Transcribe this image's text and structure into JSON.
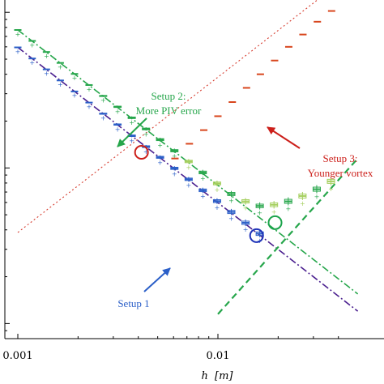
{
  "chart_data": {
    "type": "scatter",
    "title": "",
    "xlabel": "h [m]",
    "xlabel_var": "h",
    "xlabel_unit": "[m]",
    "ylabel": "",
    "xscale": "log",
    "yscale": "log",
    "xlim": [
      0.001,
      0.04
    ],
    "ylim": [
      8e-05,
      0.012
    ],
    "x_ticks": [
      {
        "value": 0.001,
        "label": "0.001"
      },
      {
        "value": 0.01,
        "label": "0.01"
      }
    ],
    "colors": {
      "setup1": "#2b5fc8",
      "setup1_fit": "#4a1f8f",
      "setup2": "#26a64b",
      "setup2_light": "#a4cf5e",
      "setup3": "#d8461d",
      "setup3_fit": "#d63b2e",
      "axis": "#000000"
    },
    "series": [
      {
        "key": "setup1",
        "x": [
          0.001,
          0.00118,
          0.00139,
          0.00163,
          0.00192,
          0.00227,
          0.00267,
          0.00315,
          0.00371,
          0.00437,
          0.00514,
          0.00606,
          0.00714,
          0.0084,
          0.0099,
          0.01166,
          0.01374,
          0.01618
        ],
        "y": [
          0.00595,
          0.00505,
          0.0043,
          0.00365,
          0.0031,
          0.00263,
          0.00223,
          0.0019,
          0.00161,
          0.00137,
          0.00117,
          0.000994,
          0.000845,
          0.000718,
          0.000612,
          0.000521,
          0.000444,
          0.000378
        ]
      },
      {
        "key": "setup2",
        "x": [
          0.001,
          0.00118,
          0.00139,
          0.00163,
          0.00192,
          0.00227,
          0.00267,
          0.00315,
          0.00371,
          0.00437,
          0.00514,
          0.00606,
          0.00714,
          0.0084,
          0.0099,
          0.01166,
          0.01374,
          0.01618,
          0.01906,
          0.02246,
          0.02646,
          0.03117,
          0.03672
        ],
        "y": [
          0.0077,
          0.00655,
          0.00556,
          0.00473,
          0.00402,
          0.00341,
          0.0029,
          0.00247,
          0.0021,
          0.00178,
          0.00152,
          0.00129,
          0.0011,
          0.000935,
          0.000795,
          0.00068,
          0.00061,
          0.00057,
          0.00058,
          0.00061,
          0.00066,
          0.00073,
          0.00082
        ]
      },
      {
        "key": "setup3",
        "x": [
          0.0061,
          0.0072,
          0.0085,
          0.01,
          0.0118,
          0.0139,
          0.0163,
          0.0192,
          0.0226,
          0.0266,
          0.0314,
          0.037
        ],
        "y": [
          0.00115,
          0.00143,
          0.00175,
          0.00215,
          0.00265,
          0.00327,
          0.004,
          0.0049,
          0.006,
          0.0072,
          0.0087,
          0.0102
        ]
      }
    ],
    "fits": [
      {
        "key": "setup1_fit",
        "style": "dash-dot",
        "x": [
          0.001,
          0.05
        ],
        "y": [
          0.00595,
          0.00012
        ]
      },
      {
        "key": "setup2_fit",
        "style": "dash-dot",
        "x": [
          0.001,
          0.05
        ],
        "y": [
          0.0077,
          0.000155
        ]
      },
      {
        "key": "setup3_fit",
        "style": "dotted",
        "x": [
          0.001,
          0.05
        ],
        "y": [
          0.000385,
          0.0191
        ]
      },
      {
        "key": "setup2_rise_fit",
        "style": "dashed",
        "x": [
          0.01,
          0.05
        ],
        "y": [
          0.000115,
          0.00115
        ]
      }
    ],
    "optimum_markers": [
      {
        "key": "setup1",
        "x": 0.0156,
        "y": 0.000367
      },
      {
        "key": "setup2",
        "x": 0.0193,
        "y": 0.000445
      },
      {
        "key": "setup3",
        "x": 0.00415,
        "y": 0.00126
      }
    ],
    "annotations": [
      {
        "key": "setup1",
        "lines": [
          "Setup 1"
        ]
      },
      {
        "key": "setup2",
        "lines": [
          "Setup 2:",
          "More PIV error"
        ]
      },
      {
        "key": "setup3",
        "lines": [
          "Setup 3:",
          "Younger vortex"
        ]
      }
    ],
    "grid": false,
    "legend": "none"
  }
}
